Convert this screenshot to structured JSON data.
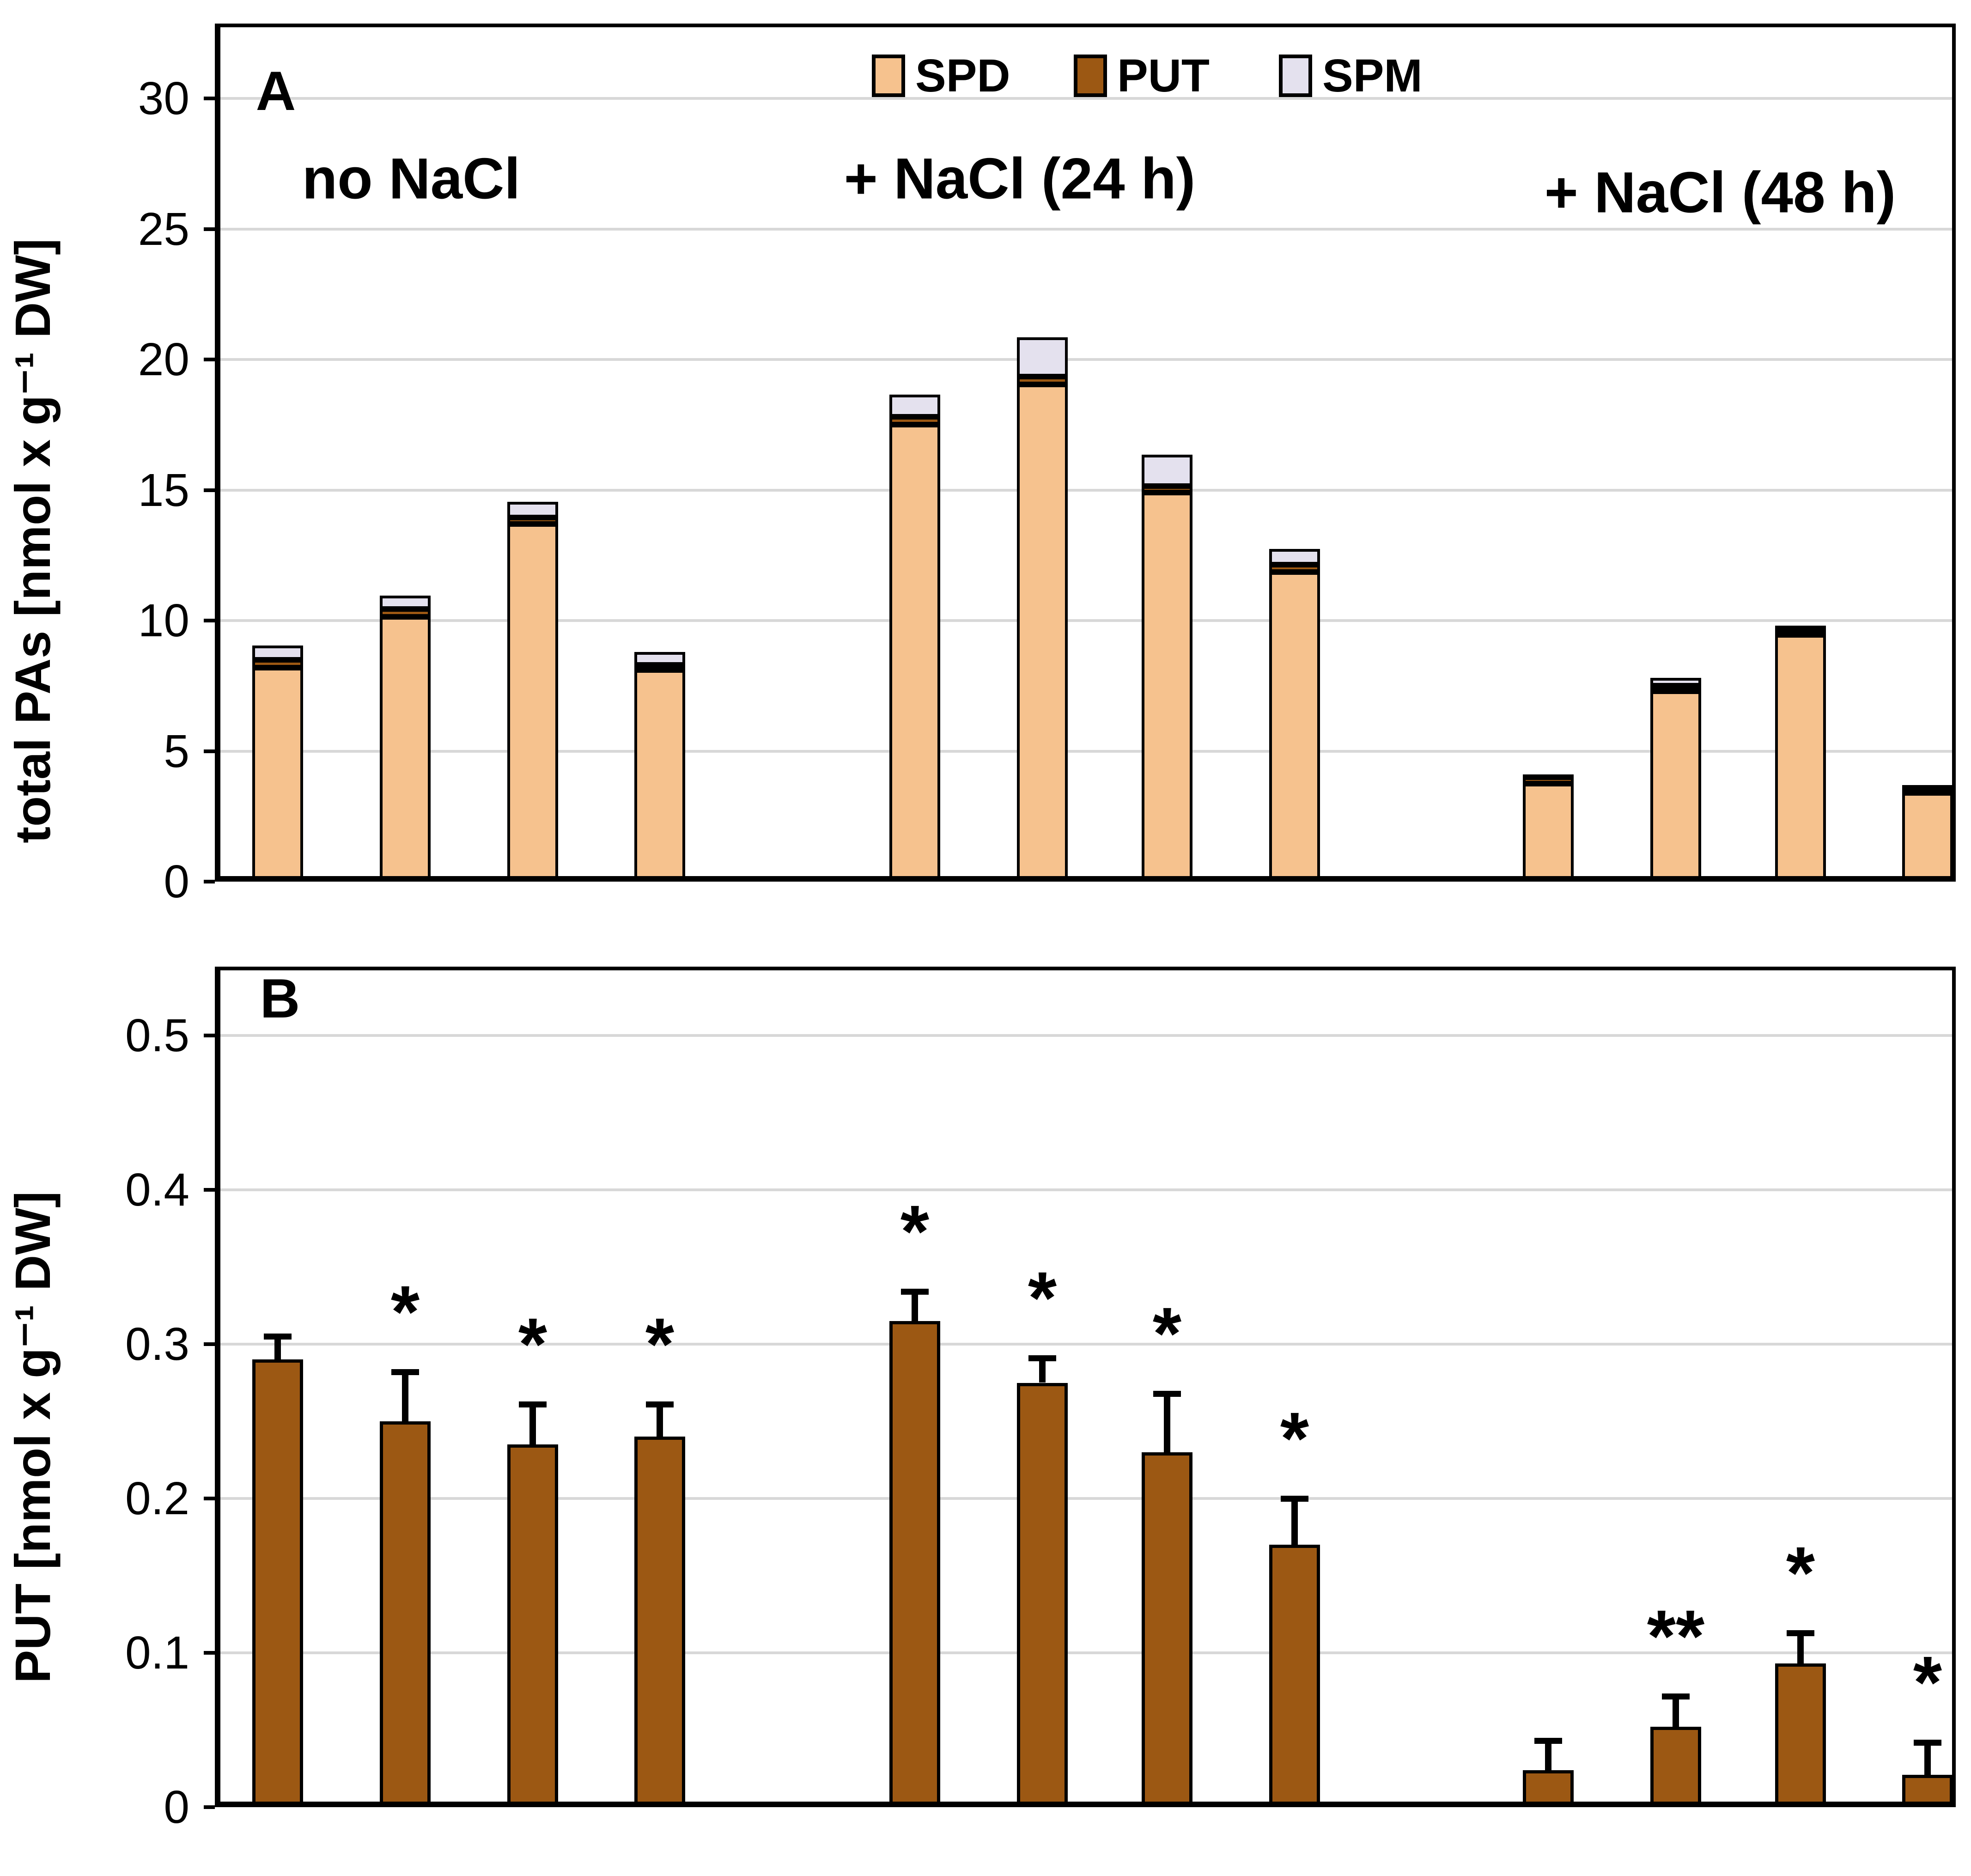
{
  "figure": {
    "panel_a": {
      "letter": "A",
      "ylabel": "total PAs [nmol x g⁻¹ DW]",
      "group_labels": [
        "no NaCl",
        "+ NaCl (24 h)",
        "+ NaCl (48 h)"
      ],
      "legend": [
        {
          "label": "SPD",
          "color": "#F6C28E"
        },
        {
          "label": "PUT",
          "color": "#9C5813"
        },
        {
          "label": "SPM",
          "color": "#E4E1EE"
        }
      ]
    },
    "panel_b": {
      "letter": "B",
      "ylabel": "PUT  [nmol x g⁻¹ DW]"
    },
    "colors": {
      "spd": "#F6C28E",
      "put": "#9C5813",
      "spm": "#E4E1EE",
      "gridline": "#D8D8D8",
      "axis": "#000000"
    }
  },
  "chart_data": [
    {
      "panel": "A",
      "type": "bar",
      "stacked": true,
      "ylabel": "total PAs [nmol x g⁻¹ DW]",
      "ylim": [
        0,
        32.9
      ],
      "yticks": [
        0,
        5,
        10,
        15,
        20,
        25,
        30
      ],
      "grid": true,
      "legend_position": "top-center",
      "legend": [
        "SPD",
        "PUT",
        "SPM"
      ],
      "series_order": [
        "SPD",
        "PUT",
        "SPM"
      ],
      "series_colors": {
        "SPD": "#F6C28E",
        "PUT": "#9C5813",
        "SPM": "#E4E1EE"
      },
      "groups": [
        {
          "label": "no NaCl",
          "bars": [
            {
              "SPD": 8.2,
              "PUT": 0.3,
              "SPM": 0.55
            },
            {
              "SPD": 10.15,
              "PUT": 0.3,
              "SPM": 0.5
            },
            {
              "SPD": 13.7,
              "PUT": 0.25,
              "SPM": 0.6
            },
            {
              "SPD": 8.1,
              "PUT": 0.2,
              "SPM": 0.5
            }
          ]
        },
        {
          "label": "+ NaCl (24 h)",
          "bars": [
            {
              "SPD": 17.5,
              "PUT": 0.3,
              "SPM": 0.85
            },
            {
              "SPD": 19.05,
              "PUT": 0.3,
              "SPM": 1.5
            },
            {
              "SPD": 14.9,
              "PUT": 0.25,
              "SPM": 1.2
            },
            {
              "SPD": 11.85,
              "PUT": 0.3,
              "SPM": 0.6
            }
          ]
        },
        {
          "label": "+ NaCl (48 h)",
          "bars": [
            {
              "SPD": 3.75,
              "PUT": 0.25,
              "SPM": 0.1
            },
            {
              "SPD": 7.3,
              "PUT": 0.2,
              "SPM": 0.3
            },
            {
              "SPD": 9.45,
              "PUT": 0.15,
              "SPM": 0.2
            },
            {
              "SPD": 3.4,
              "PUT": 0.2,
              "SPM": 0.1
            }
          ]
        }
      ]
    },
    {
      "panel": "B",
      "type": "bar",
      "stacked": false,
      "ylabel": "PUT  [nmol x g⁻¹ DW]",
      "ylim": [
        0,
        0.545
      ],
      "yticks": [
        0,
        0.1,
        0.2,
        0.3,
        0.4,
        0.5
      ],
      "ytick_labels": [
        "0",
        "0.1",
        "0.2",
        "0.3",
        "0.4",
        "0.5"
      ],
      "grid": true,
      "bar_color": "#9C5813",
      "values": [
        0.29,
        0.25,
        0.235,
        0.24,
        0.315,
        0.275,
        0.23,
        0.17,
        0.024,
        0.052,
        0.093,
        0.021
      ],
      "errors_plus": [
        0.015,
        0.032,
        0.026,
        0.021,
        0.019,
        0.016,
        0.038,
        0.03,
        0.019,
        0.02,
        0.02,
        0.021
      ],
      "significance": [
        "",
        "*",
        "*",
        "*",
        "*",
        "*",
        "*",
        "*",
        "",
        "**",
        "*",
        "*"
      ]
    }
  ]
}
